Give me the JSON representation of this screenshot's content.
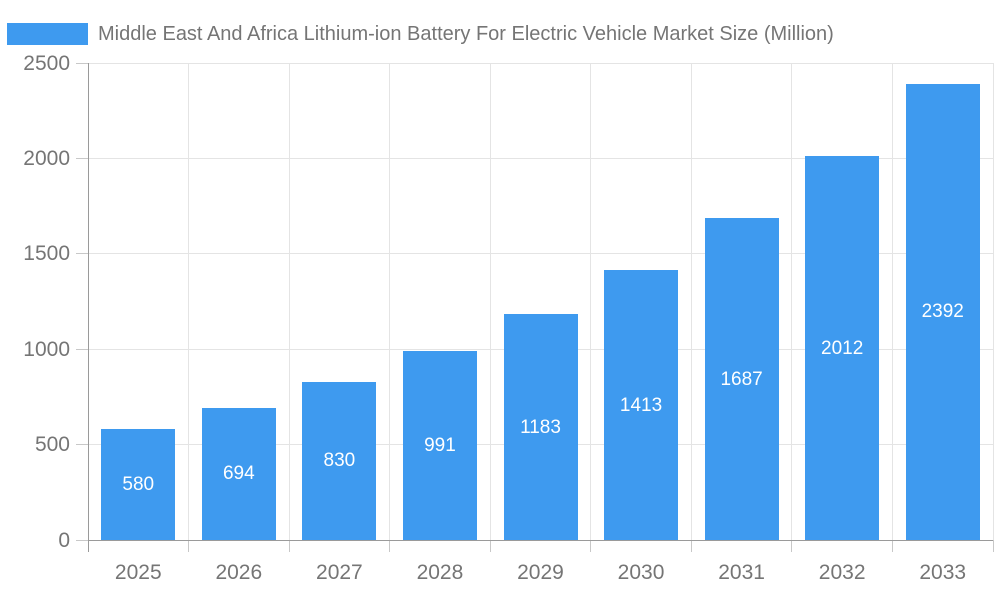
{
  "chart_data": {
    "type": "bar",
    "title": "Middle East And Africa Lithium-ion Battery For Electric Vehicle Market Size (Million)",
    "categories": [
      "2025",
      "2026",
      "2027",
      "2028",
      "2029",
      "2030",
      "2031",
      "2032",
      "2033"
    ],
    "values": [
      580,
      694,
      830,
      991,
      1183,
      1413,
      1687,
      2012,
      2392
    ],
    "xlabel": "",
    "ylabel": "",
    "ylim": [
      0,
      2500
    ],
    "yticks": [
      0,
      500,
      1000,
      1500,
      2000,
      2500
    ],
    "grid": true,
    "legend_position": "top-left",
    "value_labels": "inside-center"
  },
  "colors": {
    "bar": "#3E9AEF",
    "grid": "#E4E4E4",
    "tick": "#C8C8C8",
    "axis": "#9A9A9A",
    "text": "#757575",
    "bar_label": "#FFFFFF",
    "background": "#FFFFFF"
  }
}
